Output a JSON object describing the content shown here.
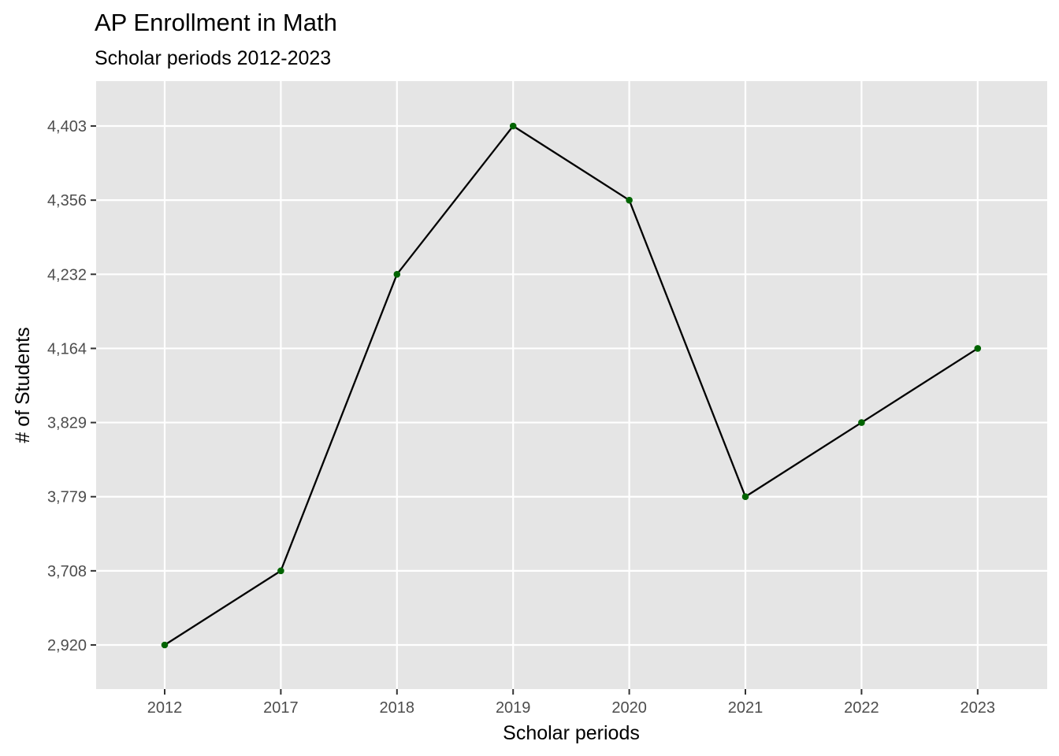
{
  "chart_data": {
    "type": "line",
    "title": "AP Enrollment in Math",
    "subtitle": "Scholar periods 2012-2023",
    "xlabel": "Scholar periods",
    "ylabel": "# of Students",
    "categories": [
      "2012",
      "2017",
      "2018",
      "2019",
      "2020",
      "2021",
      "2022",
      "2023"
    ],
    "y_tick_labels": [
      "2,920",
      "3,708",
      "3,779",
      "3,829",
      "4,164",
      "4,232",
      "4,356",
      "4,403"
    ],
    "values": [
      2920,
      3708,
      4232,
      4403,
      4356,
      3779,
      3829,
      4164
    ],
    "y_scale": "discrete",
    "grid": true,
    "legend": "none",
    "colors": {
      "panel_background": "#e5e5e5",
      "grid": "#ffffff",
      "line": "#000000",
      "point": "#006400",
      "tick_text": "#4d4d4d",
      "tick_mark": "#333333"
    }
  }
}
